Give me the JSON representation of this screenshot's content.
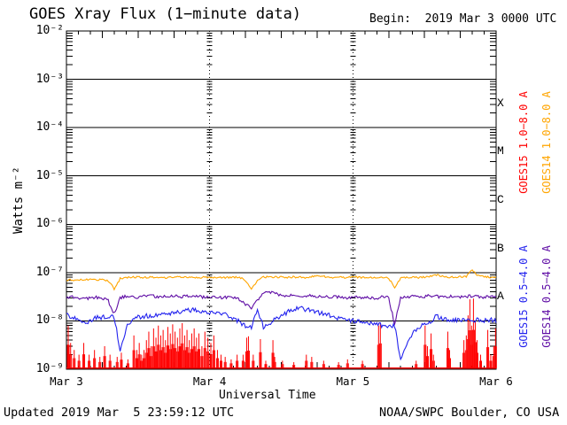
{
  "header": {
    "title": "GOES Xray Flux (1−minute data)",
    "begin_label": "Begin:  2019 Mar 3 0000 UTC"
  },
  "footer": {
    "updated": "Updated 2019 Mar  5 23:59:12 UTC",
    "source": "NOAA/SWPC Boulder, CO USA"
  },
  "colors": {
    "goes15_long": "#ff0000",
    "goes14_long": "#ffa500",
    "goes15_short": "#2323ee",
    "goes14_short": "#5f0da5",
    "axis": "#000000",
    "background": "#ffffff"
  },
  "chart_data": {
    "type": "line",
    "title": "GOES Xray Flux (1−minute data)",
    "xlabel": "Universal Time",
    "ylabel": "Watts m⁻²",
    "x_hours_range": [
      0,
      72
    ],
    "x_tick_labels": [
      "Mar 3",
      "Mar 4",
      "Mar 5",
      "Mar 6"
    ],
    "y_tick_labels": [
      "10⁻²",
      "10⁻³",
      "10⁻⁴",
      "10⁻⁵",
      "10⁻⁶",
      "10⁻⁷",
      "10⁻⁸",
      "10⁻⁹"
    ],
    "y_tick_exponents": [
      -2,
      -3,
      -4,
      -5,
      -6,
      -7,
      -8,
      -9
    ],
    "ylim": [
      1e-09,
      0.01
    ],
    "grid": "horizontal solid per decade, dotted vertical per day",
    "legend_position": "right, rotated",
    "flux_class_letters": [
      "X",
      "M",
      "C",
      "B",
      "A"
    ],
    "series": [
      {
        "name": "GOES14 1.0−8.0 A",
        "color_key": "goes14_long",
        "style": "line",
        "value_scale": 1e-08,
        "hour_step": 1,
        "values": [
          7.0,
          7.1,
          7.0,
          7.2,
          7.1,
          7.0,
          7.1,
          6.8,
          4.6,
          7.5,
          7.9,
          8.0,
          8.0,
          7.9,
          8.0,
          8.1,
          8.0,
          7.9,
          8.0,
          8.1,
          8.0,
          7.9,
          8.0,
          8.0,
          7.9,
          8.0,
          8.0,
          7.9,
          8.0,
          7.9,
          7.0,
          4.5,
          6.8,
          8.1,
          8.2,
          8.1,
          8.0,
          8.0,
          8.1,
          8.0,
          7.9,
          8.2,
          8.8,
          8.4,
          8.0,
          7.9,
          8.0,
          7.9,
          8.0,
          8.0,
          7.9,
          7.8,
          7.9,
          7.8,
          7.6,
          5.0,
          7.6,
          8.0,
          8.0,
          7.9,
          8.0,
          8.4,
          9.0,
          8.4,
          8.1,
          8.0,
          8.1,
          8.3,
          11.5,
          8.6,
          8.2,
          8.0,
          8.2
        ]
      },
      {
        "name": "GOES14 0.5−4.0 A",
        "color_key": "goes14_short",
        "style": "line",
        "value_scale": 1e-08,
        "hour_step": 1,
        "values": [
          3.0,
          3.1,
          3.0,
          2.9,
          3.0,
          3.1,
          3.0,
          2.6,
          1.4,
          3.0,
          3.2,
          3.2,
          3.1,
          3.2,
          3.3,
          3.2,
          3.1,
          3.2,
          3.3,
          3.2,
          3.2,
          3.3,
          3.2,
          3.1,
          3.2,
          3.1,
          3.0,
          3.1,
          3.0,
          2.8,
          2.2,
          1.9,
          2.6,
          3.6,
          4.0,
          3.8,
          3.4,
          3.3,
          3.4,
          3.3,
          3.2,
          3.3,
          3.2,
          3.2,
          3.1,
          3.2,
          3.1,
          3.0,
          3.1,
          3.0,
          3.1,
          3.0,
          3.0,
          3.1,
          3.0,
          0.85,
          3.0,
          3.2,
          3.2,
          3.1,
          3.2,
          3.3,
          3.2,
          3.1,
          3.2,
          3.2,
          3.1,
          3.2,
          3.3,
          3.2,
          3.1,
          3.2,
          3.2
        ]
      },
      {
        "name": "GOES15 0.5−4.0 A",
        "color_key": "goes15_short",
        "style": "line",
        "value_scale": 1e-08,
        "hour_step": 1,
        "values": [
          1.3,
          1.2,
          1.1,
          0.95,
          1.0,
          1.15,
          1.2,
          1.25,
          1.2,
          0.25,
          0.7,
          1.1,
          1.2,
          1.25,
          1.3,
          1.3,
          1.35,
          1.4,
          1.45,
          1.5,
          1.6,
          1.7,
          1.65,
          1.6,
          1.5,
          1.45,
          1.4,
          1.3,
          1.1,
          0.95,
          0.8,
          0.7,
          1.8,
          0.75,
          0.9,
          1.1,
          1.3,
          1.5,
          1.7,
          1.8,
          1.75,
          1.6,
          1.5,
          1.4,
          1.3,
          1.2,
          1.1,
          1.0,
          1.0,
          0.95,
          1.0,
          0.9,
          0.85,
          0.8,
          0.75,
          0.8,
          0.16,
          0.3,
          0.55,
          0.75,
          0.85,
          0.95,
          1.25,
          1.1,
          1.0,
          1.05,
          1.0,
          1.05,
          1.0,
          1.05,
          1.0,
          1.05,
          1.0
        ]
      },
      {
        "name": "GOES15 1.0−8.0 A",
        "color_key": "goes15_long",
        "style": "spikes",
        "value_scale": 1e-09,
        "baseline": 1.05,
        "points": [
          [
            0.3,
            8
          ],
          [
            0.7,
            3.5
          ],
          [
            1.3,
            2.5
          ],
          [
            2.1,
            2
          ],
          [
            2.9,
            3.5
          ],
          [
            3.8,
            2
          ],
          [
            4.7,
            2.5
          ],
          [
            5.6,
            1.8
          ],
          [
            6.4,
            3
          ],
          [
            7.3,
            2
          ],
          [
            8.5,
            1.8
          ],
          [
            9.2,
            2.2
          ],
          [
            10.3,
            1.6
          ],
          [
            11.3,
            5
          ],
          [
            11.8,
            2.5
          ],
          [
            12.2,
            3.5
          ],
          [
            12.6,
            2
          ],
          [
            13.0,
            2.5
          ],
          [
            13.4,
            4
          ],
          [
            13.8,
            6
          ],
          [
            14.2,
            3
          ],
          [
            14.6,
            7
          ],
          [
            15.0,
            4.5
          ],
          [
            15.4,
            8
          ],
          [
            15.8,
            5
          ],
          [
            16.2,
            6.5
          ],
          [
            16.6,
            4
          ],
          [
            17.0,
            7.5
          ],
          [
            17.4,
            5.5
          ],
          [
            17.8,
            8.5
          ],
          [
            18.2,
            6
          ],
          [
            18.6,
            4.5
          ],
          [
            19.0,
            7
          ],
          [
            19.4,
            9
          ],
          [
            19.8,
            5
          ],
          [
            20.2,
            6.5
          ],
          [
            20.6,
            4
          ],
          [
            21.0,
            5.5
          ],
          [
            21.4,
            7
          ],
          [
            21.8,
            4.5
          ],
          [
            22.2,
            5.5
          ],
          [
            22.7,
            3
          ],
          [
            23.2,
            6
          ],
          [
            23.7,
            4.5
          ],
          [
            24.2,
            3.5
          ],
          [
            24.7,
            5
          ],
          [
            25.3,
            2.5
          ],
          [
            25.9,
            2
          ],
          [
            26.6,
            1.8
          ],
          [
            27.6,
            1.6
          ],
          [
            28.6,
            2
          ],
          [
            29.6,
            2
          ],
          [
            30.2,
            4.5
          ],
          [
            30.5,
            4.8
          ],
          [
            31.3,
            2
          ],
          [
            32.5,
            4.2
          ],
          [
            33.4,
            1.5
          ],
          [
            34.6,
            4
          ],
          [
            34.9,
            1.8
          ],
          [
            36.2,
            1.5
          ],
          [
            38.1,
            1.4
          ],
          [
            40.2,
            2
          ],
          [
            41.1,
            1.8
          ],
          [
            43.1,
            1.5
          ],
          [
            45.6,
            1.4
          ],
          [
            47.1,
            1.6
          ],
          [
            49.6,
            1.5
          ],
          [
            52.3,
            8
          ],
          [
            52.6,
            9
          ],
          [
            58.6,
            1.5
          ],
          [
            60.1,
            8
          ],
          [
            60.5,
            3
          ],
          [
            61.1,
            5.5
          ],
          [
            61.5,
            2
          ],
          [
            63.9,
            6
          ],
          [
            64.2,
            2.5
          ],
          [
            66.6,
            4
          ],
          [
            67.0,
            5
          ],
          [
            67.3,
            13
          ],
          [
            67.6,
            28
          ],
          [
            67.9,
            8
          ],
          [
            68.2,
            29
          ],
          [
            68.5,
            10
          ],
          [
            68.8,
            4
          ],
          [
            69.4,
            2
          ],
          [
            70.6,
            6.5
          ],
          [
            71.1,
            2
          ],
          [
            71.6,
            3
          ],
          [
            71.9,
            7
          ]
        ]
      }
    ],
    "right_legends": [
      {
        "text": "GOES15 1.0−8.0 A",
        "color_key": "goes15_long"
      },
      {
        "text": "GOES14 1.0−8.0 A",
        "color_key": "goes14_long"
      },
      {
        "text": "GOES15 0.5−4.0 A",
        "color_key": "goes15_short"
      },
      {
        "text": "GOES14 0.5−4.0 A",
        "color_key": "goes14_short"
      }
    ]
  }
}
